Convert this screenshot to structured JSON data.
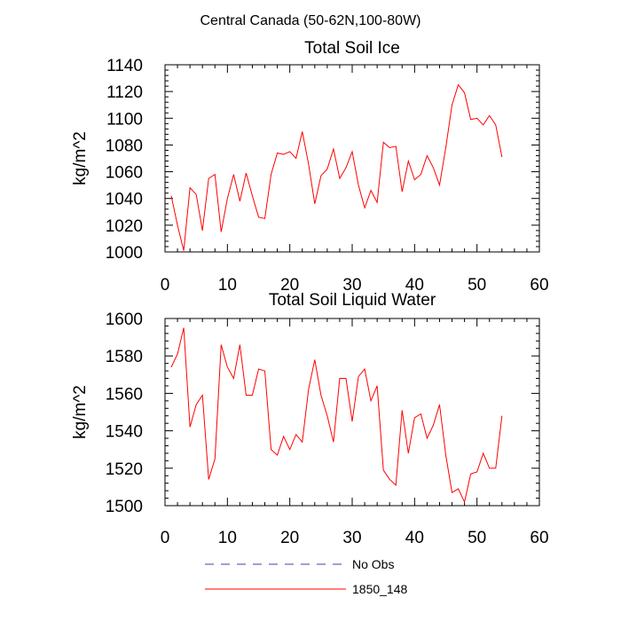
{
  "figure_title": "Central Canada (50-62N,100-80W)",
  "chart_data": [
    {
      "type": "line",
      "title": "Total Soil Ice",
      "ylabel": "kg/m^2",
      "xlabel": "",
      "xlim": [
        0,
        60
      ],
      "ylim": [
        1000,
        1140
      ],
      "xticks": [
        0,
        10,
        20,
        30,
        40,
        50,
        60
      ],
      "yticks": [
        1000,
        1020,
        1040,
        1060,
        1080,
        1100,
        1120,
        1140
      ],
      "grid": false,
      "series": [
        {
          "name": "1850_148",
          "color": "#ff0000",
          "x": [
            1,
            2,
            3,
            4,
            5,
            6,
            7,
            8,
            9,
            10,
            11,
            12,
            13,
            14,
            15,
            16,
            17,
            18,
            19,
            20,
            21,
            22,
            23,
            24,
            25,
            26,
            27,
            28,
            29,
            30,
            31,
            32,
            33,
            34,
            35,
            36,
            37,
            38,
            39,
            40,
            41,
            42,
            43,
            44,
            45,
            46,
            47,
            48,
            49,
            50,
            51,
            52,
            53,
            54
          ],
          "y": [
            1042,
            1020,
            1001,
            1048,
            1043,
            1016,
            1055,
            1058,
            1015,
            1040,
            1058,
            1038,
            1059,
            1042,
            1026,
            1025,
            1058,
            1074,
            1073,
            1075,
            1070,
            1090,
            1066,
            1036,
            1057,
            1062,
            1077,
            1055,
            1063,
            1075,
            1050,
            1033,
            1046,
            1037,
            1082,
            1078,
            1079,
            1045,
            1068,
            1054,
            1058,
            1072,
            1063,
            1050,
            1078,
            1110,
            1125,
            1119,
            1099,
            1100,
            1095,
            1102,
            1095,
            1071
          ]
        }
      ]
    },
    {
      "type": "line",
      "title": "Total Soil Liquid Water",
      "ylabel": "kg/m^2",
      "xlabel": "",
      "xlim": [
        0,
        60
      ],
      "ylim": [
        1500,
        1600
      ],
      "xticks": [
        0,
        10,
        20,
        30,
        40,
        50,
        60
      ],
      "yticks": [
        1500,
        1520,
        1540,
        1560,
        1580,
        1600
      ],
      "grid": false,
      "series": [
        {
          "name": "1850_148",
          "color": "#ff0000",
          "x": [
            1,
            2,
            3,
            4,
            5,
            6,
            7,
            8,
            9,
            10,
            11,
            12,
            13,
            14,
            15,
            16,
            17,
            18,
            19,
            20,
            21,
            22,
            23,
            24,
            25,
            26,
            27,
            28,
            29,
            30,
            31,
            32,
            33,
            34,
            35,
            36,
            37,
            38,
            39,
            40,
            41,
            42,
            43,
            44,
            45,
            46,
            47,
            48,
            49,
            50,
            51,
            52,
            53,
            54
          ],
          "y": [
            1574,
            1581,
            1595,
            1542,
            1554,
            1559,
            1514,
            1525,
            1586,
            1574,
            1568,
            1586,
            1559,
            1559,
            1573,
            1572,
            1530,
            1527,
            1537,
            1530,
            1538,
            1534,
            1562,
            1578,
            1559,
            1548,
            1534,
            1568,
            1568,
            1545,
            1569,
            1573,
            1556,
            1564,
            1519,
            1514,
            1511,
            1551,
            1528,
            1547,
            1549,
            1536,
            1543,
            1554,
            1527,
            1507,
            1509,
            1502,
            1517,
            1518,
            1528,
            1520,
            1520,
            1548
          ]
        }
      ]
    }
  ],
  "legend": {
    "placement": "bottom-center",
    "entries": [
      {
        "label": "No Obs",
        "color": "#4040a0",
        "style": "dashed"
      },
      {
        "label": "1850_148",
        "color": "#ff0000",
        "style": "solid"
      }
    ]
  }
}
